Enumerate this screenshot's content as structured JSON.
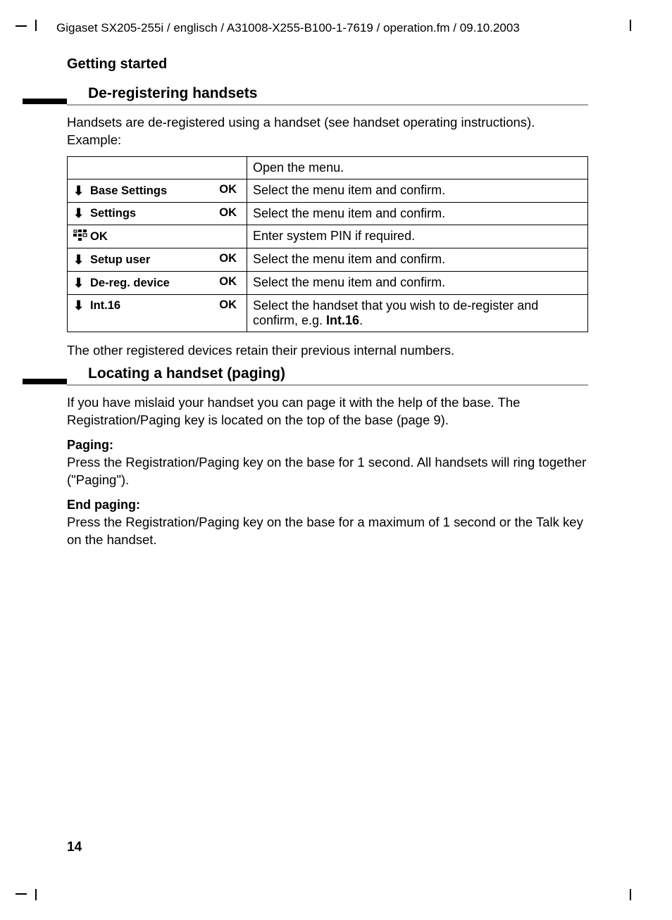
{
  "header": "Gigaset SX205-255i / englisch / A31008-X255-B100-1-7619 / operation.fm / 09.10.2003",
  "section_title": "Getting started",
  "h1": "De-registering handsets",
  "p1": "Handsets are de-registered using a handset (see handset operating instructions). Example:",
  "table": {
    "rows": [
      {
        "icon": "",
        "label": "",
        "ok": "",
        "desc": "Open the menu."
      },
      {
        "icon": "arrow",
        "label": "Base Settings",
        "ok": "OK",
        "desc": "Select the menu item and confirm."
      },
      {
        "icon": "arrow",
        "label": "Settings",
        "ok": "OK",
        "desc": "Select the menu item and confirm."
      },
      {
        "icon": "keypad",
        "label": "OK",
        "ok": "",
        "desc": "Enter system PIN if required."
      },
      {
        "icon": "arrow",
        "label": "Setup user",
        "ok": "OK",
        "desc": "Select the menu item and confirm."
      },
      {
        "icon": "arrow",
        "label": "De-reg. device",
        "ok": "OK",
        "desc": "Select the menu item and confirm."
      },
      {
        "icon": "arrow",
        "label": "Int.16",
        "ok": "OK",
        "desc_pre": "Select the handset that you wish to de-register and confirm, e.g. ",
        "desc_bold": "Int.16",
        "desc_post": "."
      }
    ]
  },
  "p2": "The other registered devices retain their previous internal numbers.",
  "h2": "Locating a handset (paging)",
  "p3": "If you have mislaid your handset you can page it with the help of the base. The Registration/Paging key is located on the top of the base (page 9).",
  "paging_label": "Paging:",
  "paging_text": "Press the Registration/Paging key on the base for 1 second. All handsets will ring together (\"Paging\").",
  "endpaging_label": "End paging:",
  "endpaging_text": "Press the Registration/Paging key on the base for a maximum of 1 second or the Talk key on the handset.",
  "page_number": "14"
}
